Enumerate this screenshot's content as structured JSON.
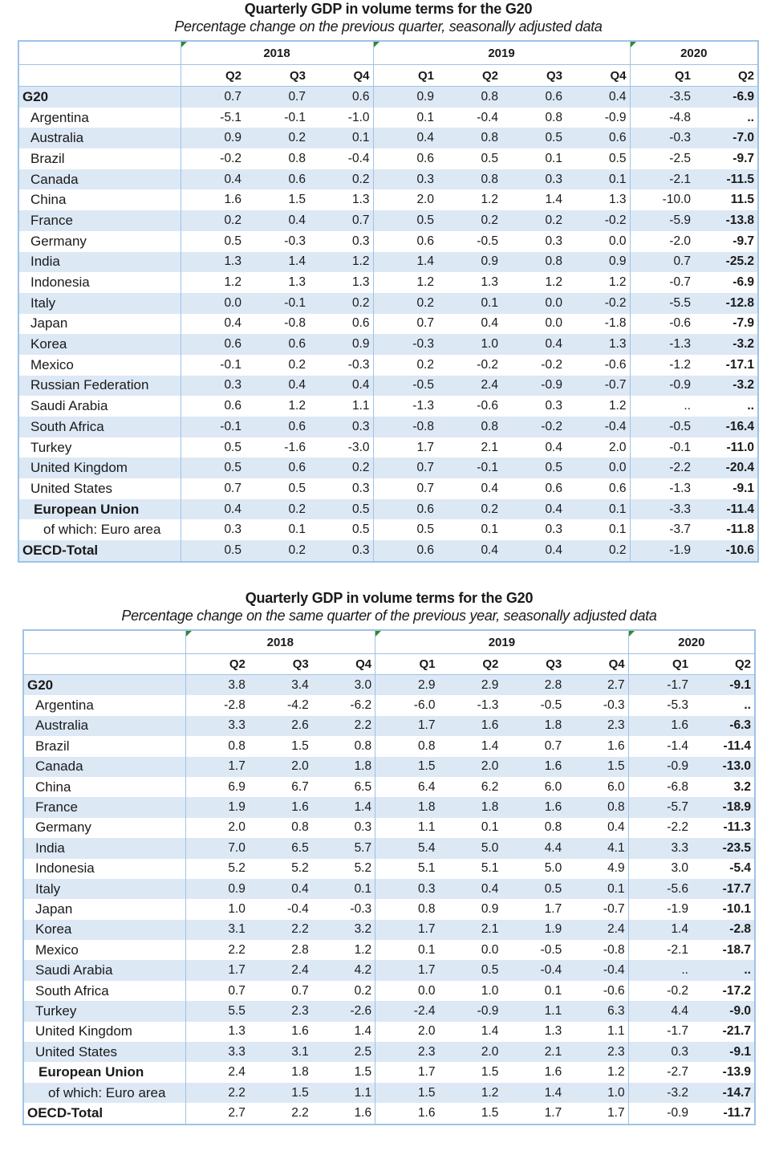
{
  "quarters": [
    "Q2",
    "Q3",
    "Q4",
    "Q1",
    "Q2",
    "Q3",
    "Q4",
    "Q1",
    "Q2"
  ],
  "years": [
    "2018",
    "2019",
    "2020"
  ],
  "table1": {
    "title": "Quarterly GDP in volume terms for the G20",
    "subtitle": "Percentage change on the previous quarter, seasonally adjusted data",
    "rows": [
      {
        "name": "G20",
        "style": "strong",
        "values": [
          "0.7",
          "0.7",
          "0.6",
          "0.9",
          "0.8",
          "0.6",
          "0.4",
          "-3.5",
          "-6.9"
        ]
      },
      {
        "name": "Argentina",
        "style": "country",
        "values": [
          "-5.1",
          "-0.1",
          "-1.0",
          "0.1",
          "-0.4",
          "0.8",
          "-0.9",
          "-4.8",
          ".."
        ]
      },
      {
        "name": "Australia",
        "style": "country",
        "values": [
          "0.9",
          "0.2",
          "0.1",
          "0.4",
          "0.8",
          "0.5",
          "0.6",
          "-0.3",
          "-7.0"
        ]
      },
      {
        "name": "Brazil",
        "style": "country",
        "values": [
          "-0.2",
          "0.8",
          "-0.4",
          "0.6",
          "0.5",
          "0.1",
          "0.5",
          "-2.5",
          "-9.7"
        ]
      },
      {
        "name": "Canada",
        "style": "country",
        "values": [
          "0.4",
          "0.6",
          "0.2",
          "0.3",
          "0.8",
          "0.3",
          "0.1",
          "-2.1",
          "-11.5"
        ]
      },
      {
        "name": "China",
        "style": "country",
        "values": [
          "1.6",
          "1.5",
          "1.3",
          "2.0",
          "1.2",
          "1.4",
          "1.3",
          "-10.0",
          "11.5"
        ]
      },
      {
        "name": "France",
        "style": "country",
        "values": [
          "0.2",
          "0.4",
          "0.7",
          "0.5",
          "0.2",
          "0.2",
          "-0.2",
          "-5.9",
          "-13.8"
        ]
      },
      {
        "name": "Germany",
        "style": "country",
        "values": [
          "0.5",
          "-0.3",
          "0.3",
          "0.6",
          "-0.5",
          "0.3",
          "0.0",
          "-2.0",
          "-9.7"
        ]
      },
      {
        "name": "India",
        "style": "country",
        "values": [
          "1.3",
          "1.4",
          "1.2",
          "1.4",
          "0.9",
          "0.8",
          "0.9",
          "0.7",
          "-25.2"
        ]
      },
      {
        "name": "Indonesia",
        "style": "country",
        "values": [
          "1.2",
          "1.3",
          "1.3",
          "1.2",
          "1.3",
          "1.2",
          "1.2",
          "-0.7",
          "-6.9"
        ]
      },
      {
        "name": "Italy",
        "style": "country",
        "values": [
          "0.0",
          "-0.1",
          "0.2",
          "0.2",
          "0.1",
          "0.0",
          "-0.2",
          "-5.5",
          "-12.8"
        ]
      },
      {
        "name": "Japan",
        "style": "country",
        "values": [
          "0.4",
          "-0.8",
          "0.6",
          "0.7",
          "0.4",
          "0.0",
          "-1.8",
          "-0.6",
          "-7.9"
        ]
      },
      {
        "name": "Korea",
        "style": "country",
        "values": [
          "0.6",
          "0.6",
          "0.9",
          "-0.3",
          "1.0",
          "0.4",
          "1.3",
          "-1.3",
          "-3.2"
        ]
      },
      {
        "name": "Mexico",
        "style": "country",
        "values": [
          "-0.1",
          "0.2",
          "-0.3",
          "0.2",
          "-0.2",
          "-0.2",
          "-0.6",
          "-1.2",
          "-17.1"
        ]
      },
      {
        "name": "Russian Federation",
        "style": "country",
        "values": [
          "0.3",
          "0.4",
          "0.4",
          "-0.5",
          "2.4",
          "-0.9",
          "-0.7",
          "-0.9",
          "-3.2"
        ]
      },
      {
        "name": "Saudi Arabia",
        "style": "country",
        "values": [
          "0.6",
          "1.2",
          "1.1",
          "-1.3",
          "-0.6",
          "0.3",
          "1.2",
          "..",
          ".."
        ]
      },
      {
        "name": "South Africa",
        "style": "country",
        "values": [
          "-0.1",
          "0.6",
          "0.3",
          "-0.8",
          "0.8",
          "-0.2",
          "-0.4",
          "-0.5",
          "-16.4"
        ]
      },
      {
        "name": "Turkey",
        "style": "country",
        "values": [
          "0.5",
          "-1.6",
          "-3.0",
          "1.7",
          "2.1",
          "0.4",
          "2.0",
          "-0.1",
          "-11.0"
        ]
      },
      {
        "name": "United Kingdom",
        "style": "country",
        "values": [
          "0.5",
          "0.6",
          "0.2",
          "0.7",
          "-0.1",
          "0.5",
          "0.0",
          "-2.2",
          "-20.4"
        ]
      },
      {
        "name": "United States",
        "style": "country",
        "values": [
          "0.7",
          "0.5",
          "0.3",
          "0.7",
          "0.4",
          "0.6",
          "0.6",
          "-1.3",
          "-9.1"
        ]
      },
      {
        "name": "European Union",
        "style": "eu",
        "values": [
          "0.4",
          "0.2",
          "0.5",
          "0.6",
          "0.2",
          "0.4",
          "0.1",
          "-3.3",
          "-11.4"
        ]
      },
      {
        "name": "of which: Euro area",
        "style": "ea",
        "values": [
          "0.3",
          "0.1",
          "0.5",
          "0.5",
          "0.1",
          "0.3",
          "0.1",
          "-3.7",
          "-11.8"
        ]
      },
      {
        "name": "OECD-Total",
        "style": "strong",
        "values": [
          "0.5",
          "0.2",
          "0.3",
          "0.6",
          "0.4",
          "0.4",
          "0.2",
          "-1.9",
          "-10.6"
        ]
      }
    ]
  },
  "table2": {
    "title": "Quarterly GDP in volume terms for the G20",
    "subtitle": "Percentage change on the same quarter of the previous year, seasonally adjusted data",
    "rows": [
      {
        "name": "G20",
        "style": "strong",
        "values": [
          "3.8",
          "3.4",
          "3.0",
          "2.9",
          "2.9",
          "2.8",
          "2.7",
          "-1.7",
          "-9.1"
        ]
      },
      {
        "name": "Argentina",
        "style": "country",
        "values": [
          "-2.8",
          "-4.2",
          "-6.2",
          "-6.0",
          "-1.3",
          "-0.5",
          "-0.3",
          "-5.3",
          ".."
        ]
      },
      {
        "name": "Australia",
        "style": "country",
        "values": [
          "3.3",
          "2.6",
          "2.2",
          "1.7",
          "1.6",
          "1.8",
          "2.3",
          "1.6",
          "-6.3"
        ]
      },
      {
        "name": "Brazil",
        "style": "country",
        "values": [
          "0.8",
          "1.5",
          "0.8",
          "0.8",
          "1.4",
          "0.7",
          "1.6",
          "-1.4",
          "-11.4"
        ]
      },
      {
        "name": "Canada",
        "style": "country",
        "values": [
          "1.7",
          "2.0",
          "1.8",
          "1.5",
          "2.0",
          "1.6",
          "1.5",
          "-0.9",
          "-13.0"
        ]
      },
      {
        "name": "China",
        "style": "country",
        "values": [
          "6.9",
          "6.7",
          "6.5",
          "6.4",
          "6.2",
          "6.0",
          "6.0",
          "-6.8",
          "3.2"
        ]
      },
      {
        "name": "France",
        "style": "country",
        "values": [
          "1.9",
          "1.6",
          "1.4",
          "1.8",
          "1.8",
          "1.6",
          "0.8",
          "-5.7",
          "-18.9"
        ]
      },
      {
        "name": "Germany",
        "style": "country",
        "values": [
          "2.0",
          "0.8",
          "0.3",
          "1.1",
          "0.1",
          "0.8",
          "0.4",
          "-2.2",
          "-11.3"
        ]
      },
      {
        "name": "India",
        "style": "country",
        "values": [
          "7.0",
          "6.5",
          "5.7",
          "5.4",
          "5.0",
          "4.4",
          "4.1",
          "3.3",
          "-23.5"
        ]
      },
      {
        "name": "Indonesia",
        "style": "country",
        "values": [
          "5.2",
          "5.2",
          "5.2",
          "5.1",
          "5.1",
          "5.0",
          "4.9",
          "3.0",
          "-5.4"
        ]
      },
      {
        "name": "Italy",
        "style": "country",
        "values": [
          "0.9",
          "0.4",
          "0.1",
          "0.3",
          "0.4",
          "0.5",
          "0.1",
          "-5.6",
          "-17.7"
        ]
      },
      {
        "name": "Japan",
        "style": "country",
        "values": [
          "1.0",
          "-0.4",
          "-0.3",
          "0.8",
          "0.9",
          "1.7",
          "-0.7",
          "-1.9",
          "-10.1"
        ]
      },
      {
        "name": "Korea",
        "style": "country",
        "values": [
          "3.1",
          "2.2",
          "3.2",
          "1.7",
          "2.1",
          "1.9",
          "2.4",
          "1.4",
          "-2.8"
        ]
      },
      {
        "name": "Mexico",
        "style": "country",
        "values": [
          "2.2",
          "2.8",
          "1.2",
          "0.1",
          "0.0",
          "-0.5",
          "-0.8",
          "-2.1",
          "-18.7"
        ]
      },
      {
        "name": "Saudi Arabia",
        "style": "country",
        "values": [
          "1.7",
          "2.4",
          "4.2",
          "1.7",
          "0.5",
          "-0.4",
          "-0.4",
          "..",
          ".."
        ]
      },
      {
        "name": "South Africa",
        "style": "country",
        "values": [
          "0.7",
          "0.7",
          "0.2",
          "0.0",
          "1.0",
          "0.1",
          "-0.6",
          "-0.2",
          "-17.2"
        ]
      },
      {
        "name": "Turkey",
        "style": "country",
        "values": [
          "5.5",
          "2.3",
          "-2.6",
          "-2.4",
          "-0.9",
          "1.1",
          "6.3",
          "4.4",
          "-9.0"
        ]
      },
      {
        "name": "United Kingdom",
        "style": "country",
        "values": [
          "1.3",
          "1.6",
          "1.4",
          "2.0",
          "1.4",
          "1.3",
          "1.1",
          "-1.7",
          "-21.7"
        ]
      },
      {
        "name": "United States",
        "style": "country",
        "values": [
          "3.3",
          "3.1",
          "2.5",
          "2.3",
          "2.0",
          "2.1",
          "2.3",
          "0.3",
          "-9.1"
        ]
      },
      {
        "name": "European Union",
        "style": "eu",
        "values": [
          "2.4",
          "1.8",
          "1.5",
          "1.7",
          "1.5",
          "1.6",
          "1.2",
          "-2.7",
          "-13.9"
        ]
      },
      {
        "name": "of which: Euro area",
        "style": "ea",
        "values": [
          "2.2",
          "1.5",
          "1.1",
          "1.5",
          "1.2",
          "1.4",
          "1.0",
          "-3.2",
          "-14.7"
        ]
      },
      {
        "name": "OECD-Total",
        "style": "strong",
        "values": [
          "2.7",
          "2.2",
          "1.6",
          "1.6",
          "1.5",
          "1.7",
          "1.7",
          "-0.9",
          "-11.7"
        ]
      }
    ]
  }
}
